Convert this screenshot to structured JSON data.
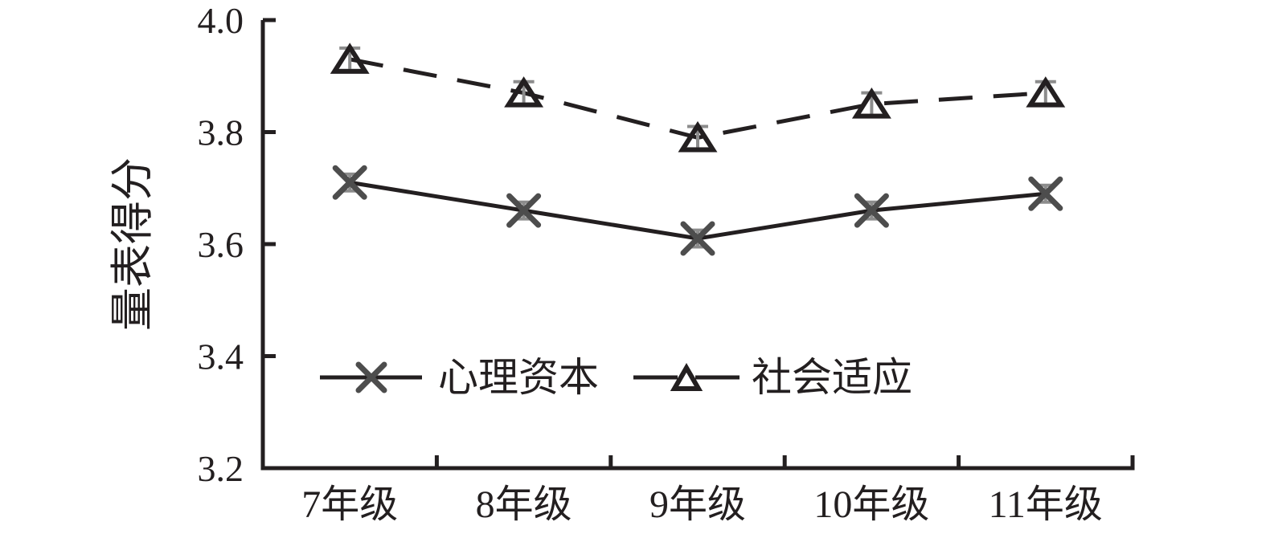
{
  "page": {
    "background": "#ffffff"
  },
  "chart_data": {
    "type": "line",
    "title": "",
    "xlabel": "",
    "ylabel": "量表得分",
    "categories": [
      "7年级",
      "8年级",
      "9年级",
      "10年级",
      "11年级"
    ],
    "ylim": [
      3.2,
      4.0
    ],
    "yticks": [
      4.0,
      3.8,
      3.6,
      3.4,
      3.2
    ],
    "grid": false,
    "legend_position": "inside-bottom-left",
    "colors": {
      "line": "#231f20",
      "x_marker": "#4d4d4d",
      "triangle_marker": "#231f20",
      "error_bar": "#8c8c8c",
      "text": "#231f20",
      "background": "#ffffff"
    },
    "series": [
      {
        "name": "心理资本",
        "marker": "x",
        "line_style": "solid",
        "values": [
          3.71,
          3.66,
          3.61,
          3.66,
          3.69
        ],
        "errors": [
          0.015,
          0.015,
          0.015,
          0.015,
          0.015
        ]
      },
      {
        "name": "社会适应",
        "marker": "triangle",
        "line_style": "dashed",
        "values": [
          3.93,
          3.87,
          3.79,
          3.85,
          3.87
        ],
        "errors": [
          0.02,
          0.02,
          0.02,
          0.02,
          0.02
        ]
      }
    ]
  }
}
